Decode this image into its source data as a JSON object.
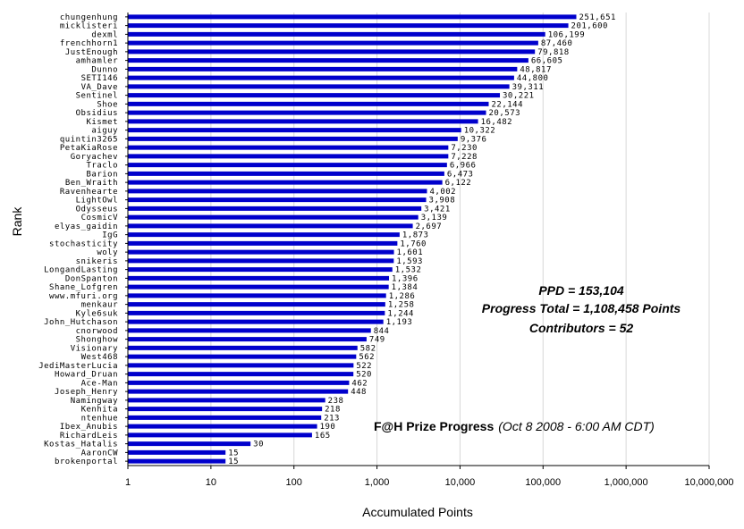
{
  "chart_data": {
    "type": "bar",
    "orientation": "horizontal",
    "x_scale": "log",
    "xlim": [
      1,
      10000000
    ],
    "xlabel": "Accumulated Points",
    "ylabel": "Rank",
    "x_ticks": [
      "1",
      "10",
      "100",
      "1,000",
      "10,000",
      "100,000",
      "1,000,000",
      "10,000,000"
    ],
    "x_tick_values": [
      1,
      10,
      100,
      1000,
      10000,
      100000,
      1000000,
      10000000
    ],
    "grid": "vertical",
    "bar_color": "#0000cc",
    "categories": [
      "chungenhung",
      "micklisteri",
      "dexml",
      "frenchhorn1",
      "JustEnough",
      "amhamler",
      "Dunno",
      "SETI146",
      "VA_Dave",
      "Sentinel",
      "Shoe",
      "Obsidius",
      "Kismet",
      "aiguy",
      "quintin3265",
      "PetaKiaRose",
      "Goryachev",
      "Traclo",
      "Barion",
      "Ben_Wraith",
      "Ravenhearte",
      "LightOwl",
      "Odysseus",
      "CosmicV",
      "elyas_gaidin",
      "IgG",
      "stochasticity",
      "woly",
      "snikeris",
      "LongandLasting",
      "DonSpanton",
      "Shane_Lofgren",
      "www.mfuri.org",
      "menkaur",
      "Kyle6suk",
      "John_Hutchason",
      "cnorwood",
      "Shonghow",
      "Visionary",
      "West468",
      "JediMasterLucia",
      "Howard_Druan",
      "Ace-Man",
      "Joseph_Henry",
      "Namingway",
      "Kenhita",
      "ntenhue",
      "Ibex_Anubis",
      "RichardLeis",
      "Kostas_Hatalis",
      "AaronCW",
      "brokenportal"
    ],
    "values": [
      251651,
      201600,
      106199,
      87460,
      79818,
      66605,
      48817,
      44800,
      39311,
      30221,
      22144,
      20573,
      16482,
      10322,
      9376,
      7230,
      7228,
      6966,
      6473,
      6122,
      4002,
      3908,
      3421,
      3139,
      2697,
      1873,
      1760,
      1601,
      1593,
      1532,
      1396,
      1384,
      1286,
      1258,
      1244,
      1193,
      844,
      749,
      582,
      562,
      522,
      520,
      462,
      448,
      238,
      218,
      213,
      190,
      165,
      30,
      15,
      15
    ],
    "value_labels": [
      "251,651",
      "201,600",
      "106,199",
      "87,460",
      "79,818",
      "66,605",
      "48,817",
      "44,800",
      "39,311",
      "30,221",
      "22,144",
      "20,573",
      "16,482",
      "10,322",
      "9,376",
      "7,230",
      "7,228",
      "6,966",
      "6,473",
      "6,122",
      "4,002",
      "3,908",
      "3,421",
      "3,139",
      "2,697",
      "1,873",
      "1,760",
      "1,601",
      "1,593",
      "1,532",
      "1,396",
      "1,384",
      "1,286",
      "1,258",
      "1,244",
      "1,193",
      "844",
      "749",
      "582",
      "562",
      "522",
      "520",
      "462",
      "448",
      "238",
      "218",
      "213",
      "190",
      "165",
      "30",
      "15",
      "15"
    ],
    "annotations": {
      "ppd": "PPD = 153,104",
      "progress_total": "Progress Total = 1,108,458 Points",
      "contributors": "Contributors = 52",
      "prize_title": "F@H Prize Progress",
      "prize_date": "(Oct 8 2008 - 6:00 AM CDT)"
    }
  }
}
